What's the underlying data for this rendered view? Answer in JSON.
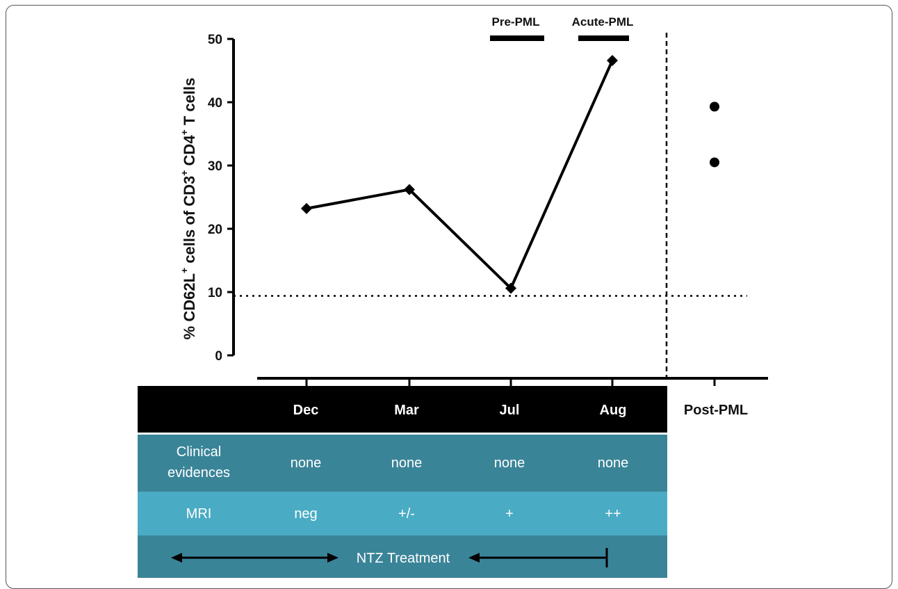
{
  "chart_data": {
    "type": "line",
    "ylabel_parts": [
      "% CD62L",
      "+",
      " cells of CD3",
      "+",
      " CD4",
      "+",
      " T cells"
    ],
    "ylim": [
      0,
      50
    ],
    "yticks": [
      "0",
      "10",
      "20",
      "30",
      "40",
      "50"
    ],
    "categories": [
      "Dec",
      "Mar",
      "Jul",
      "Aug",
      "Post-PML"
    ],
    "series": [
      {
        "marker": "diamond",
        "x": [
          "Dec",
          "Mar",
          "Jul",
          "Aug"
        ],
        "values": [
          23.2,
          26.2,
          10.6,
          46.6
        ]
      }
    ],
    "post_points": [
      39.3,
      30.5
    ],
    "threshold": 9.4,
    "phases": [
      {
        "label": "Pre-PML"
      },
      {
        "label": "Acute-PML"
      }
    ],
    "grid": false
  },
  "table": {
    "header": [
      "Dec",
      "Mar",
      "Jul",
      "Aug"
    ],
    "post_header": "Post-PML",
    "rows": [
      {
        "label_lines": [
          "Clinical",
          "evidences"
        ],
        "cells": [
          "none",
          "none",
          "none",
          "none"
        ]
      },
      {
        "label_lines": [
          "MRI"
        ],
        "cells": [
          "neg",
          "+/-",
          "+",
          "++"
        ]
      }
    ],
    "treatment_label": "NTZ  Treatment"
  },
  "colors": {
    "header_bg": "#000000",
    "row_clinical_bg": "#3a8498",
    "row_mri_bg": "#4aabc4",
    "row_treatment_bg": "#3a8498",
    "line": "#000000"
  }
}
